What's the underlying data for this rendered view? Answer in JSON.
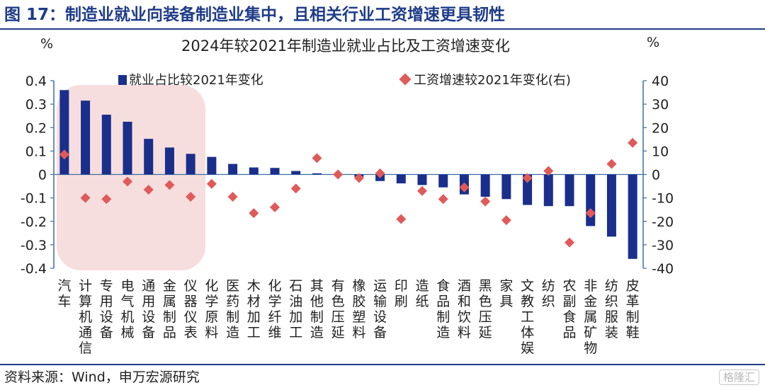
{
  "header": {
    "title": "图 17：制造业就业向装备制造业集中，且相关行业工资增速更具韧性"
  },
  "footer": {
    "source": "资料来源：Wind，申万宏源研究",
    "watermark": "格隆汇"
  },
  "colors": {
    "bar": "#1a2f8c",
    "marker": "#e05a5a",
    "highlight": "#f7dede",
    "axis": "#3a6ea5",
    "title": "#1f3c88"
  },
  "chart_data": {
    "type": "bar",
    "title": "2024年较2021年制造业就业占比及工资增速变化",
    "left_unit": "%",
    "right_unit": "%",
    "ylim_left": [
      -0.4,
      0.4
    ],
    "yticks_left": [
      "0.4",
      "0.3",
      "0.2",
      "0.1",
      "0",
      "-0.1",
      "-0.2",
      "-0.3",
      "-0.4"
    ],
    "ylim_right": [
      -40,
      40
    ],
    "yticks_right": [
      "40",
      "30",
      "20",
      "10",
      "0",
      "-10",
      "-20",
      "-30",
      "-40"
    ],
    "legend_position": "top",
    "highlight_categories": 7,
    "categories": [
      "汽车",
      "计算机通信",
      "专用设备",
      "电气机械",
      "通用设备",
      "金属制品",
      "仪器仪表",
      "化学原料",
      "医药制造",
      "木材加工",
      "化学纤维",
      "石油加工",
      "其他制造",
      "有色压延",
      "橡胶塑料",
      "运输设备",
      "印刷",
      "造纸",
      "食品制造",
      "酒和饮料",
      "黑色压延",
      "家具",
      "文教工体娱",
      "纺织",
      "农副食品",
      "非金属矿物",
      "纺织服装",
      "皮革制鞋"
    ],
    "series": [
      {
        "name": "就业占比较2021年变化",
        "kind": "bar",
        "axis": "left",
        "values": [
          0.36,
          0.315,
          0.255,
          0.225,
          0.152,
          0.115,
          0.088,
          0.075,
          0.045,
          0.03,
          0.028,
          0.015,
          0.005,
          0.0,
          -0.01,
          -0.028,
          -0.038,
          -0.045,
          -0.055,
          -0.085,
          -0.095,
          -0.105,
          -0.13,
          -0.135,
          -0.135,
          -0.22,
          -0.265,
          -0.36
        ]
      },
      {
        "name": "工资增速较2021年变化(右)",
        "kind": "scatter",
        "axis": "right",
        "values": [
          8.5,
          -10,
          -10.5,
          -3,
          -6.5,
          -4.5,
          -9.5,
          -4,
          -9.5,
          -16.5,
          -14,
          -6,
          7,
          0,
          -1.5,
          0.5,
          -19,
          -7,
          -10.5,
          -5.5,
          -11.5,
          -19.5,
          -1.5,
          1.5,
          -29,
          -16.5,
          4.5,
          13.5
        ]
      }
    ]
  }
}
